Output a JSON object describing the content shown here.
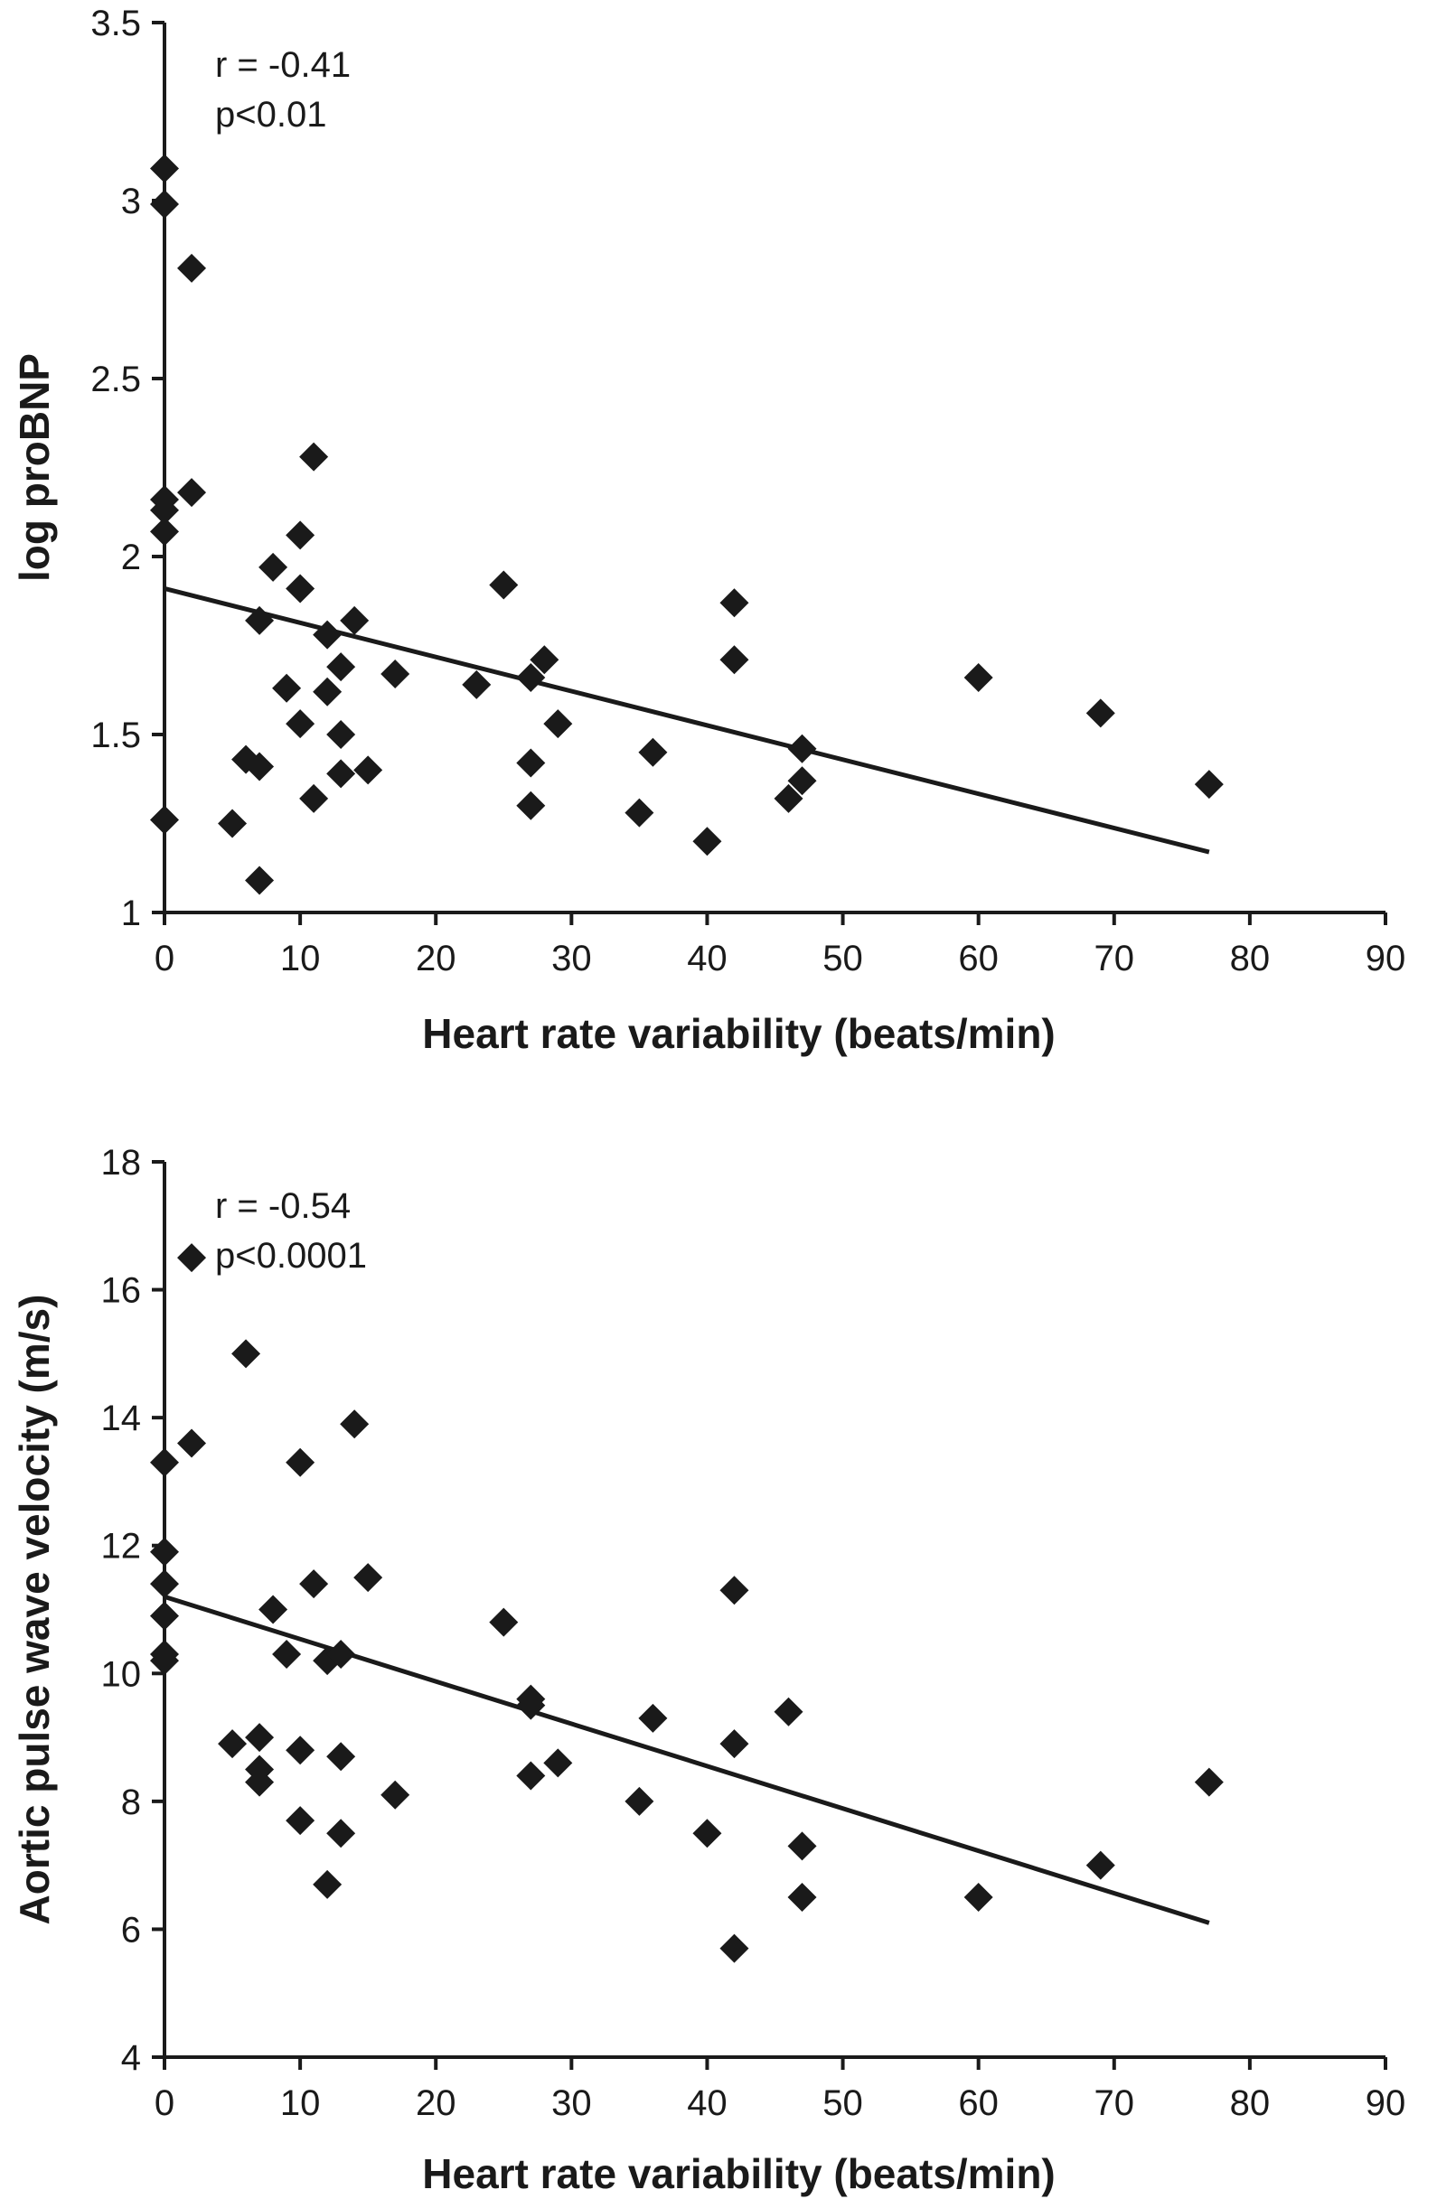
{
  "chart_data": [
    {
      "type": "scatter",
      "title": "",
      "xlabel": "Heart rate variability (beats/min)",
      "ylabel": "log proBNP",
      "xlim": [
        0,
        90
      ],
      "ylim": [
        1,
        3.5
      ],
      "x_ticks": [
        "0",
        "10",
        "20",
        "30",
        "40",
        "50",
        "60",
        "70",
        "80",
        "90"
      ],
      "x_tick_values": [
        0,
        10,
        20,
        30,
        40,
        50,
        60,
        70,
        80,
        90
      ],
      "y_ticks": [
        "1",
        "1.5",
        "2",
        "2.5",
        "3",
        "3.5"
      ],
      "y_tick_values": [
        1,
        1.5,
        2,
        2.5,
        3,
        3.5
      ],
      "grid": false,
      "annotations": [
        "r = -0.41",
        "p<0.01"
      ],
      "trendline": {
        "x": [
          0,
          77
        ],
        "y": [
          1.91,
          1.17
        ]
      },
      "points": [
        [
          0,
          3.09
        ],
        [
          0,
          2.99
        ],
        [
          2,
          2.81
        ],
        [
          0,
          2.16
        ],
        [
          0,
          2.13
        ],
        [
          0,
          2.07
        ],
        [
          2,
          2.18
        ],
        [
          0,
          1.26
        ],
        [
          11,
          2.28
        ],
        [
          10,
          2.06
        ],
        [
          8,
          1.97
        ],
        [
          10,
          1.91
        ],
        [
          7,
          1.82
        ],
        [
          12,
          1.78
        ],
        [
          14,
          1.82
        ],
        [
          13,
          1.69
        ],
        [
          9,
          1.63
        ],
        [
          12,
          1.62
        ],
        [
          10,
          1.53
        ],
        [
          13,
          1.5
        ],
        [
          6,
          1.43
        ],
        [
          7,
          1.41
        ],
        [
          13,
          1.39
        ],
        [
          15,
          1.4
        ],
        [
          11,
          1.32
        ],
        [
          5,
          1.25
        ],
        [
          7,
          1.09
        ],
        [
          17,
          1.67
        ],
        [
          25,
          1.92
        ],
        [
          23,
          1.64
        ],
        [
          27,
          1.66
        ],
        [
          28,
          1.71
        ],
        [
          29,
          1.53
        ],
        [
          27,
          1.42
        ],
        [
          27,
          1.3
        ],
        [
          35,
          1.28
        ],
        [
          36,
          1.45
        ],
        [
          40,
          1.2
        ],
        [
          42,
          1.87
        ],
        [
          42,
          1.71
        ],
        [
          46,
          1.32
        ],
        [
          47,
          1.37
        ],
        [
          47,
          1.46
        ],
        [
          60,
          1.66
        ],
        [
          69,
          1.56
        ],
        [
          77,
          1.36
        ]
      ]
    },
    {
      "type": "scatter",
      "title": "",
      "xlabel": "Heart rate variability (beats/min)",
      "ylabel": "Aortic pulse wave  velocity (m/s)",
      "xlim": [
        0,
        90
      ],
      "ylim": [
        4,
        18
      ],
      "x_ticks": [
        "0",
        "10",
        "20",
        "30",
        "40",
        "50",
        "60",
        "70",
        "80",
        "90"
      ],
      "x_tick_values": [
        0,
        10,
        20,
        30,
        40,
        50,
        60,
        70,
        80,
        90
      ],
      "y_ticks": [
        "4",
        "6",
        "8",
        "10",
        "12",
        "14",
        "16",
        "18"
      ],
      "y_tick_values": [
        4,
        6,
        8,
        10,
        12,
        14,
        16,
        18
      ],
      "grid": false,
      "annotations": [
        "r = -0.54",
        "p<0.0001"
      ],
      "trendline": {
        "x": [
          0,
          77
        ],
        "y": [
          11.2,
          6.1
        ]
      },
      "points": [
        [
          2,
          16.5
        ],
        [
          6,
          15.0
        ],
        [
          14,
          13.9
        ],
        [
          2,
          13.6
        ],
        [
          0,
          13.3
        ],
        [
          10,
          13.3
        ],
        [
          0,
          11.9
        ],
        [
          15,
          11.5
        ],
        [
          0,
          11.4
        ],
        [
          11,
          11.4
        ],
        [
          0,
          10.9
        ],
        [
          8,
          11.0
        ],
        [
          9,
          10.3
        ],
        [
          12,
          10.2
        ],
        [
          13,
          10.3
        ],
        [
          0,
          10.3
        ],
        [
          0,
          10.2
        ],
        [
          5,
          8.9
        ],
        [
          7,
          9.0
        ],
        [
          7,
          8.5
        ],
        [
          7,
          8.3
        ],
        [
          10,
          8.8
        ],
        [
          13,
          8.7
        ],
        [
          17,
          8.1
        ],
        [
          10,
          7.7
        ],
        [
          13,
          7.5
        ],
        [
          12,
          6.7
        ],
        [
          25,
          10.8
        ],
        [
          27,
          9.6
        ],
        [
          27,
          9.5
        ],
        [
          27,
          8.4
        ],
        [
          29,
          8.6
        ],
        [
          35,
          8.0
        ],
        [
          36,
          9.3
        ],
        [
          40,
          7.5
        ],
        [
          42,
          11.3
        ],
        [
          42,
          8.9
        ],
        [
          42,
          5.7
        ],
        [
          46,
          9.4
        ],
        [
          47,
          7.3
        ],
        [
          47,
          6.5
        ],
        [
          60,
          6.5
        ],
        [
          69,
          7.0
        ],
        [
          77,
          8.3
        ]
      ]
    }
  ]
}
